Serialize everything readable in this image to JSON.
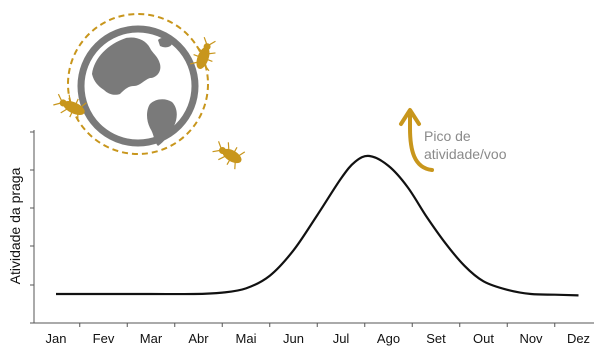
{
  "chart_data": {
    "type": "line",
    "ylabel": "Atividade da praga",
    "categories": [
      "Jan",
      "Fev",
      "Mar",
      "Abr",
      "Mai",
      "Jun",
      "Jul",
      "Ago",
      "Set",
      "Out",
      "Nov",
      "Dez"
    ],
    "series": [
      {
        "x": [
          0,
          1,
          2,
          2.9,
          3.5,
          4,
          4.5,
          5,
          5.5,
          6,
          6.3,
          6.6,
          7,
          7.4,
          7.8,
          8.2,
          8.6,
          9,
          9.5,
          10,
          10.5,
          11
        ],
        "values": [
          0.02,
          0.02,
          0.02,
          0.02,
          0.03,
          0.06,
          0.15,
          0.33,
          0.58,
          0.84,
          0.96,
          1.0,
          0.93,
          0.78,
          0.57,
          0.38,
          0.22,
          0.11,
          0.05,
          0.02,
          0.015,
          0.01
        ]
      }
    ],
    "grid": false,
    "annotation": {
      "text_line1": "Pico de",
      "text_line2": "atividade/voo",
      "arrow_color": "#c8961c"
    },
    "colors": {
      "line": "#111111",
      "axis": "#555555",
      "globe": "#7a7a7a",
      "orbit": "#c8961c",
      "insect": "#c8961c"
    },
    "icons": [
      "globe-icon",
      "insect-icon"
    ]
  }
}
